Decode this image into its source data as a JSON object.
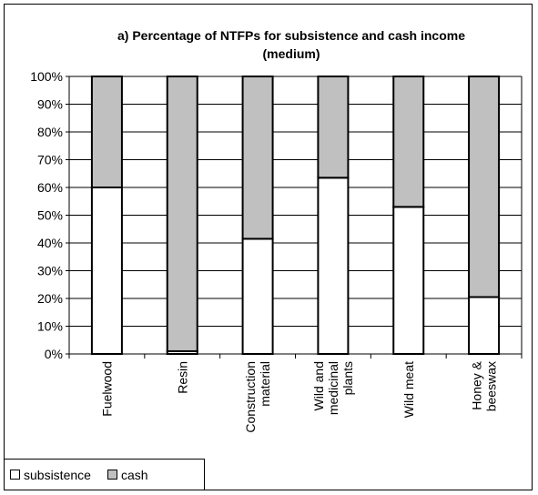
{
  "chart_data": {
    "type": "bar",
    "stacked": true,
    "normalized_percent": true,
    "title": "a) Percentage of NTFPs for subsistence and cash income",
    "subtitle": "(medium)",
    "xlabel": "",
    "ylabel": "",
    "ylim": [
      0,
      100
    ],
    "y_ticks": [
      "0%",
      "10%",
      "20%",
      "30%",
      "40%",
      "50%",
      "60%",
      "70%",
      "80%",
      "90%",
      "100%"
    ],
    "categories": [
      [
        "Fuelwood"
      ],
      [
        "Resin"
      ],
      [
        "Construction",
        "material"
      ],
      [
        "Wild and",
        "medicinal",
        "plants"
      ],
      [
        "Wild meat"
      ],
      [
        "Honey &",
        "beeswax"
      ]
    ],
    "series": [
      {
        "name": "subsistence",
        "color": "#ffffff",
        "values": [
          60,
          1,
          41.5,
          63.5,
          53,
          20.5
        ]
      },
      {
        "name": "cash",
        "color": "#c0c0c0",
        "values": [
          40,
          99,
          58.5,
          36.5,
          47,
          79.5
        ]
      }
    ],
    "grid": true,
    "legend_position": "bottom-left"
  }
}
